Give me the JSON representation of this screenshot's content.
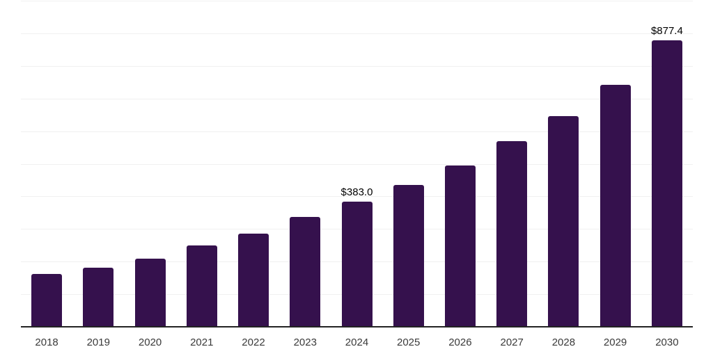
{
  "chart_data": {
    "type": "bar",
    "categories": [
      "2018",
      "2019",
      "2020",
      "2021",
      "2022",
      "2023",
      "2024",
      "2025",
      "2026",
      "2027",
      "2028",
      "2029",
      "2030"
    ],
    "values": [
      162.0,
      181.0,
      208.0,
      249.0,
      285.5,
      336.5,
      383.0,
      434.5,
      494.0,
      568.5,
      645.0,
      743.0,
      877.4
    ],
    "data_labels": [
      {
        "index": 6,
        "text": "$383.0"
      },
      {
        "index": 12,
        "text": "$877.4"
      }
    ],
    "title": "",
    "xlabel": "",
    "ylabel": "",
    "ylim": [
      0,
      1000
    ],
    "grid": "horizontal",
    "gridline_step": 100,
    "legend_position": "none",
    "colors": {
      "bar": "#35114D",
      "data_label": "#000000",
      "tick_label": "#3A3A3A",
      "axis_line": "#222222",
      "gridline": "#F0F0F0",
      "background": "#FFFFFF"
    }
  }
}
